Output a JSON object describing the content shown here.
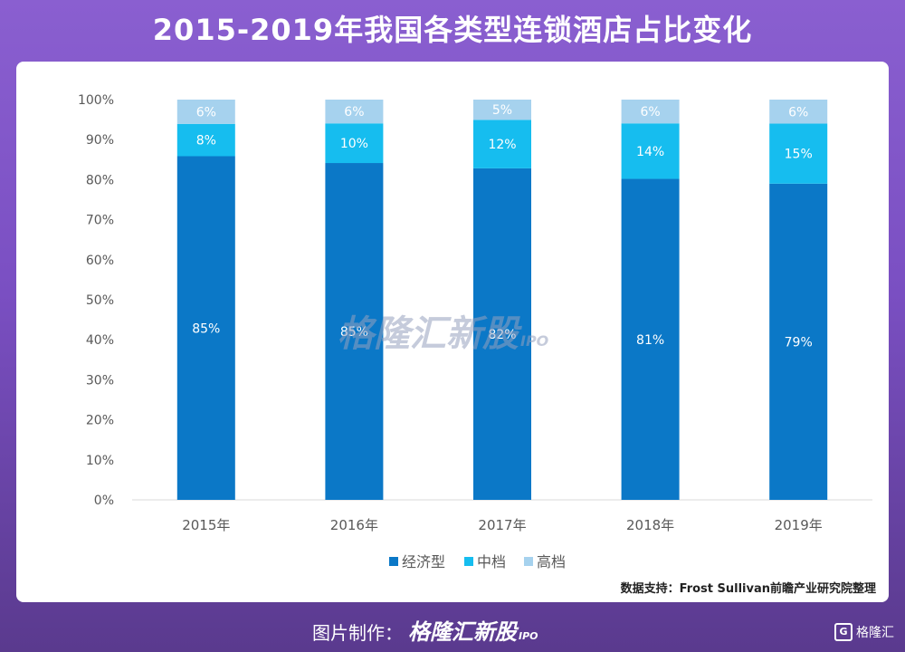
{
  "title": "2015-2019年我国各类型连锁酒店占比变化",
  "watermark": {
    "text": "格隆汇新股",
    "suffix": "IPO"
  },
  "source": "数据支持：Frost   Sullivan前瞻产业研究院整理",
  "footer": {
    "label": "图片制作：",
    "brand": "格隆汇新股",
    "brand_suffix": "IPO",
    "corner_logo": "格隆汇"
  },
  "colors": {
    "economy": "#0b78c7",
    "mid": "#16bdef",
    "high": "#a6d2ee",
    "grid": "#d9d9d9"
  },
  "chart_data": {
    "type": "bar",
    "stacked": true,
    "categories": [
      "2015年",
      "2016年",
      "2017年",
      "2018年",
      "2019年"
    ],
    "series": [
      {
        "name": "经济型",
        "values": [
          85,
          85,
          82,
          81,
          79
        ],
        "labels": [
          "85%",
          "85%",
          "82%",
          "81%",
          "79%"
        ]
      },
      {
        "name": "中档",
        "values": [
          8,
          10,
          12,
          14,
          15
        ],
        "labels": [
          "8%",
          "10%",
          "12%",
          "14%",
          "15%"
        ]
      },
      {
        "name": "高档",
        "values": [
          6,
          6,
          5,
          6,
          6
        ],
        "labels": [
          "6%",
          "6%",
          "5%",
          "6%",
          "6%"
        ]
      }
    ],
    "ylim": [
      0,
      100
    ],
    "yticks": [
      "0%",
      "10%",
      "20%",
      "30%",
      "40%",
      "50%",
      "60%",
      "70%",
      "80%",
      "90%",
      "100%"
    ],
    "legend_position": "bottom",
    "grid": false
  }
}
